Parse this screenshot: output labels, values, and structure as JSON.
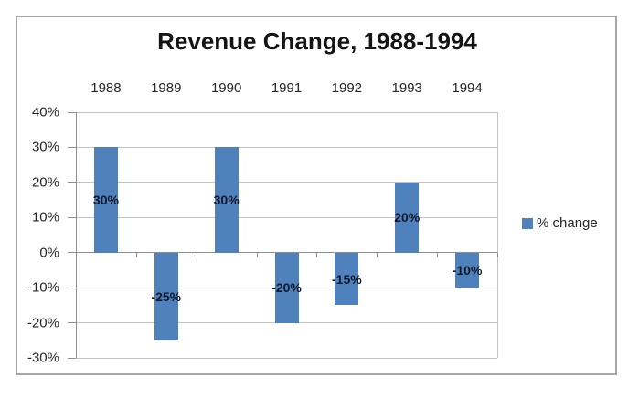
{
  "chart_data": {
    "type": "bar",
    "title": "Revenue Change, 1988-1994",
    "categories": [
      "1988",
      "1989",
      "1990",
      "1991",
      "1992",
      "1993",
      "1994"
    ],
    "series": [
      {
        "name": "% change",
        "values": [
          30,
          -25,
          30,
          -20,
          -15,
          20,
          -10
        ]
      }
    ],
    "value_labels": [
      "30%",
      "-25%",
      "30%",
      "-20%",
      "-15%",
      "20%",
      "-10%"
    ],
    "y_ticks": [
      {
        "value": 40,
        "label": "40%"
      },
      {
        "value": 30,
        "label": "30%"
      },
      {
        "value": 20,
        "label": "20%"
      },
      {
        "value": 10,
        "label": "10%"
      },
      {
        "value": 0,
        "label": "0%"
      },
      {
        "value": -10,
        "label": "-10%"
      },
      {
        "value": -20,
        "label": "-20%"
      },
      {
        "value": -30,
        "label": "-30%"
      }
    ],
    "ylim": [
      -30,
      40
    ],
    "xlabel": "",
    "ylabel": "",
    "grid": true,
    "legend_position": "right",
    "colors": {
      "bar": "#4F81BD",
      "gridline": "#C3C3C3",
      "axis": "#8E8E8E",
      "frame_border": "#A6A6A6",
      "title_text": "#141414",
      "axis_text": "#262626",
      "data_label_text": "#10172B",
      "background": "#FFFFFF"
    }
  }
}
